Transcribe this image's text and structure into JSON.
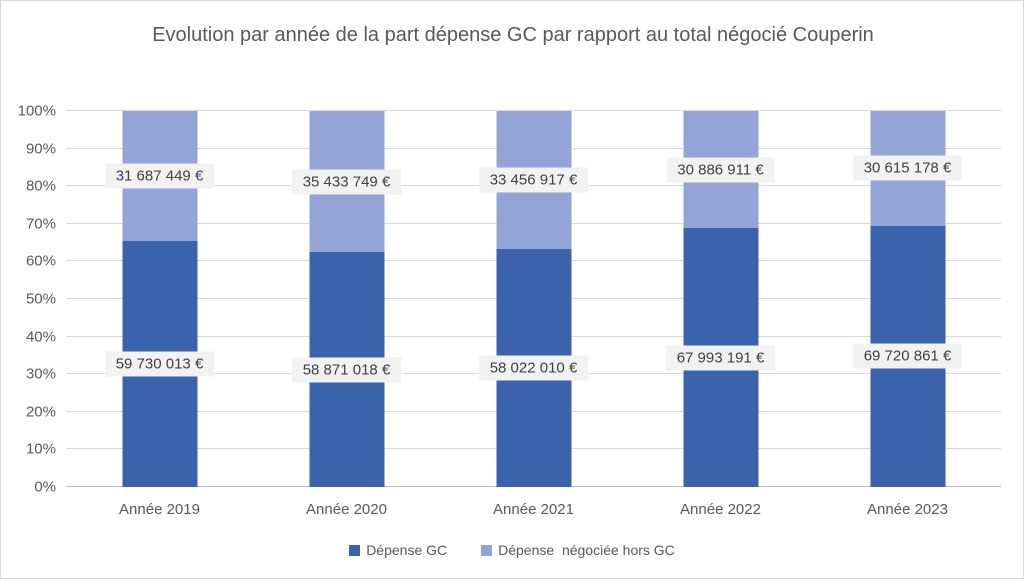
{
  "title": "Evolution par année de la part dépense GC par rapport au total négocié Couperin",
  "chart_data": {
    "type": "bar",
    "stacked": true,
    "stacking": "percent",
    "title": "Evolution par année de la part dépense GC par rapport au total négocié Couperin",
    "categories": [
      "Année 2019",
      "Année 2020",
      "Année 2021",
      "Année 2022",
      "Année 2023"
    ],
    "series": [
      {
        "name": "Dépense GC",
        "color": "#3b63ac",
        "values": [
          59730013,
          58871018,
          58022010,
          67993191,
          69720861
        ],
        "labels": [
          "59 730 013 €",
          "58 871 018 €",
          "58 022 010 €",
          "67 993 191 €",
          "69 720 861 €"
        ]
      },
      {
        "name": "Dépense  négociée hors GC",
        "color": "#93a4d6",
        "values": [
          31687449,
          35433749,
          33456917,
          30886911,
          30615178
        ],
        "labels": [
          "31 687 449 €",
          "35 433 749 €",
          "33 456 917 €",
          "30 886 911 €",
          "30 615 178 €"
        ]
      }
    ],
    "y_axis": {
      "min": 0,
      "max": 1,
      "tick_labels": [
        "0%",
        "10%",
        "20%",
        "30%",
        "40%",
        "50%",
        "60%",
        "70%",
        "80%",
        "90%",
        "100%"
      ]
    },
    "xlabel": "",
    "ylabel": "",
    "grid": true,
    "legend_position": "bottom",
    "data_label_background": "#f2f2f2",
    "gridline_color": "#d9d9d9",
    "axis_line_color": "#bfbfbf",
    "text_color": "#595959"
  }
}
